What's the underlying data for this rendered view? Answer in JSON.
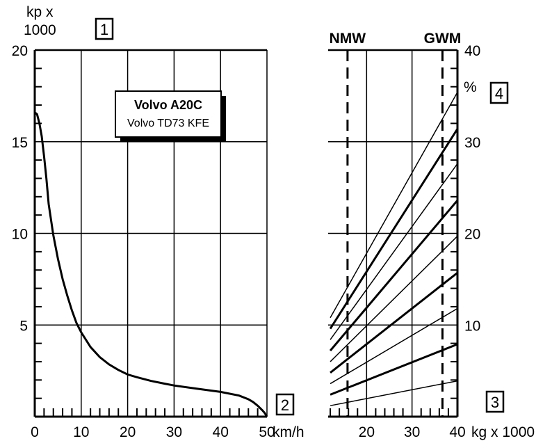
{
  "chart_data": [
    {
      "type": "line",
      "title": "",
      "ylabel_line1": "kp x",
      "ylabel_line2": "1000",
      "xlabel": "km/h",
      "xlim": [
        0,
        50
      ],
      "ylim": [
        0,
        20
      ],
      "x_ticks": [
        0,
        10,
        20,
        30,
        40,
        50
      ],
      "y_ticks": [
        5,
        10,
        15,
        20
      ],
      "grid": true,
      "box_number": "1",
      "axis_number": "2",
      "legend": {
        "title": "Volvo A20C",
        "subtitle": "Volvo TD73 KFE",
        "placement": "top-center"
      },
      "series": [
        {
          "x": [
            0.0,
            0.5,
            1.0,
            1.5,
            2.0,
            2.5,
            3.0,
            4.0,
            5.0,
            6.0,
            7.0,
            8.0,
            9.0,
            10.0,
            12.0,
            14.0,
            16.0,
            18.0,
            20.0,
            22.0,
            25.0,
            28.0,
            30.0,
            35.0,
            40.0,
            44.0,
            46.0,
            47.0,
            48.0,
            49.0,
            49.5,
            50.0
          ],
          "y": [
            16.6,
            16.5,
            16.0,
            15.3,
            14.2,
            13.0,
            11.6,
            9.9,
            8.6,
            7.5,
            6.6,
            5.8,
            5.1,
            4.6,
            3.8,
            3.25,
            2.85,
            2.55,
            2.3,
            2.15,
            1.95,
            1.8,
            1.7,
            1.52,
            1.35,
            1.15,
            0.95,
            0.8,
            0.6,
            0.35,
            0.2,
            0.0
          ]
        }
      ]
    },
    {
      "type": "line",
      "title": "",
      "xlabel": "kg x 1000",
      "xlim": [
        10,
        40
      ],
      "ylim": [
        0,
        20
      ],
      "x_ticks": [
        20,
        30,
        40
      ],
      "grade_label": "%",
      "grade_ticks": [
        10,
        20,
        30,
        40
      ],
      "box_number_x": "3",
      "box_number_grade": "4",
      "grid": true,
      "reference_lines": [
        {
          "label": "NMW",
          "x": 15.8
        },
        {
          "label": "GWM",
          "x": 36.7
        }
      ],
      "series": [
        {
          "grade": 5,
          "x": [
            12,
            40
          ],
          "y": [
            0.6,
            1.95
          ]
        },
        {
          "grade": 10,
          "x": [
            12,
            40
          ],
          "y": [
            1.2,
            3.95
          ]
        },
        {
          "grade": 15,
          "x": [
            12,
            40
          ],
          "y": [
            1.8,
            5.9
          ]
        },
        {
          "grade": 20,
          "x": [
            12,
            40
          ],
          "y": [
            2.4,
            7.85
          ]
        },
        {
          "grade": 25,
          "x": [
            12,
            40
          ],
          "y": [
            3.0,
            9.85
          ]
        },
        {
          "grade": 30,
          "x": [
            12,
            40
          ],
          "y": [
            3.6,
            11.8
          ]
        },
        {
          "grade": 35,
          "x": [
            12,
            40
          ],
          "y": [
            4.2,
            13.8
          ]
        },
        {
          "grade": 40,
          "x": [
            12,
            40
          ],
          "y": [
            4.8,
            15.7
          ]
        },
        {
          "grade": 45,
          "x": [
            12,
            40
          ],
          "y": [
            5.4,
            17.7
          ]
        }
      ]
    }
  ]
}
